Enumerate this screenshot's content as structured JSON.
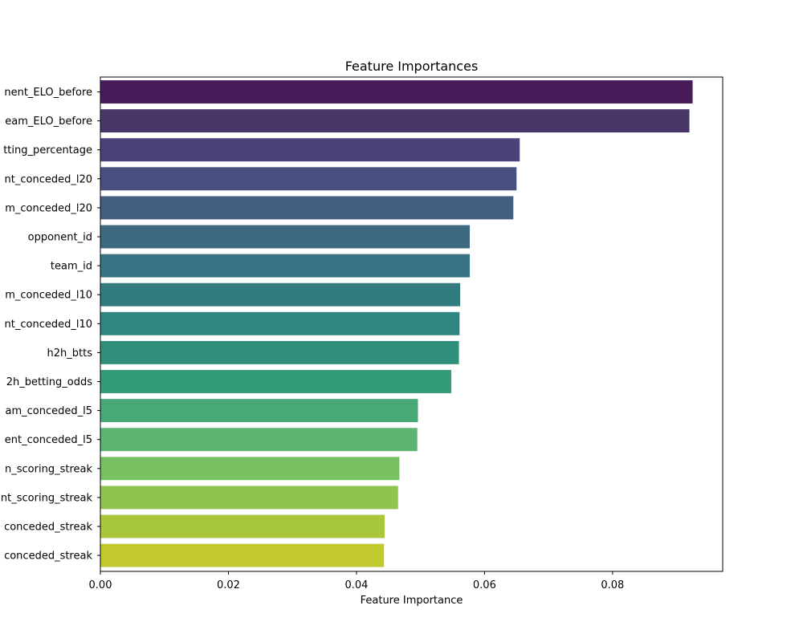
{
  "chart_data": {
    "type": "bar",
    "orientation": "horizontal",
    "title": "Feature Importances",
    "xlabel": "Feature Importance",
    "ylabel": "",
    "xlim": [
      0,
      0.0972
    ],
    "xticks": [
      0.0,
      0.02,
      0.04,
      0.06,
      0.08
    ],
    "xtick_labels": [
      "0.00",
      "0.02",
      "0.04",
      "0.06",
      "0.08"
    ],
    "grid": false,
    "categories": [
      "nent_ELO_before",
      "eam_ELO_before",
      "tting_percentage",
      "nt_conceded_l20",
      "m_conceded_l20",
      "opponent_id",
      "team_id",
      "m_conceded_l10",
      "nt_conceded_l10",
      "h2h_btts",
      "2h_betting_odds",
      "am_conceded_l5",
      "ent_conceded_l5",
      "n_scoring_streak",
      "nt_scoring_streak",
      "conceded_streak",
      "conceded_streak"
    ],
    "values": [
      0.0925,
      0.092,
      0.0655,
      0.065,
      0.0645,
      0.0577,
      0.0577,
      0.0562,
      0.0561,
      0.056,
      0.0548,
      0.0496,
      0.0495,
      0.0467,
      0.0465,
      0.0444,
      0.0443
    ],
    "colors": [
      "#481c59",
      "#483768",
      "#4b4279",
      "#47507f",
      "#435e80",
      "#3e6a81",
      "#377383",
      "#327c80",
      "#2f8680",
      "#2f8f7a",
      "#339b77",
      "#48a976",
      "#5cb571",
      "#78c163",
      "#90c451",
      "#a8c73b",
      "#c1c92e"
    ]
  }
}
